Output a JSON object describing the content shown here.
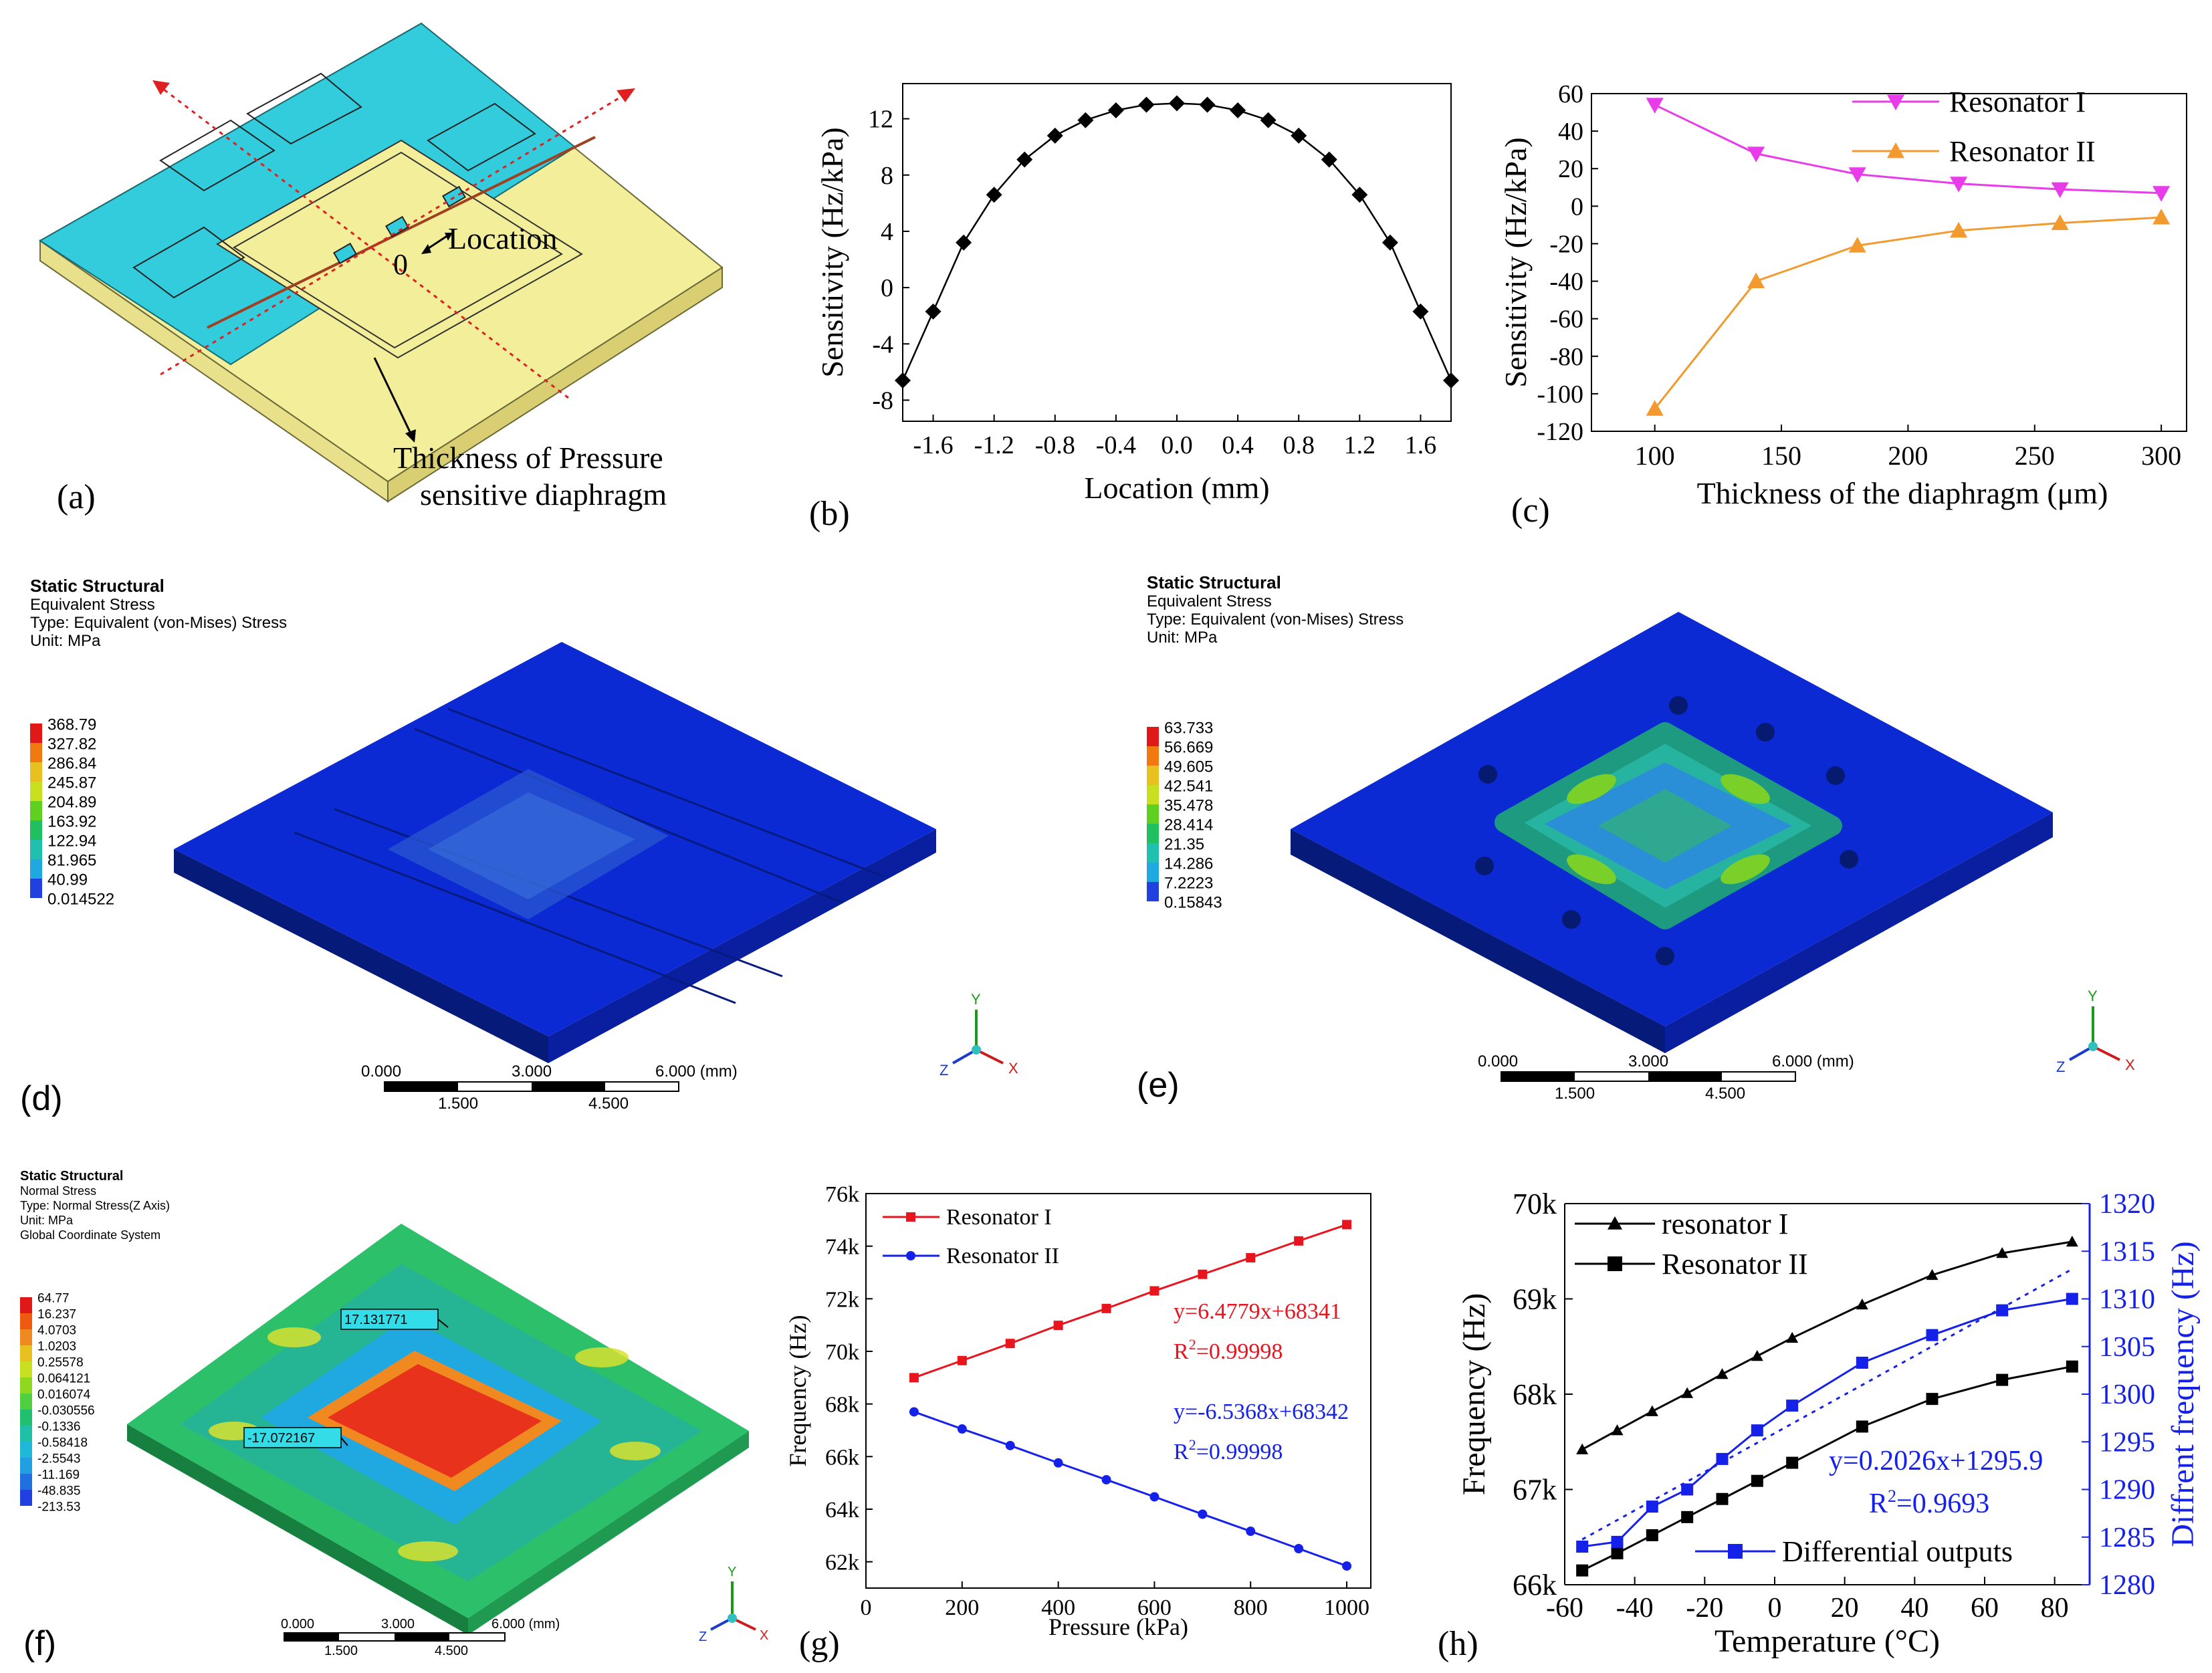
{
  "panels": {
    "a": {
      "label": "(a)",
      "annot_location": "Location",
      "annot_zero": "0",
      "annot_thickness_1": "Thickness of Pressure",
      "annot_thickness_2": "sensitive diaphragm"
    },
    "d": {
      "label": "(d)",
      "header": [
        "Static Structural",
        "Equivalent Stress",
        "Type: Equivalent (von-Mises) Stress",
        "Unit: MPa"
      ],
      "legend": [
        "368.79",
        "327.82",
        "286.84",
        "245.87",
        "204.89",
        "163.92",
        "122.94",
        "81.965",
        "40.99",
        "0.014522"
      ],
      "scale_top": [
        "0.000",
        "3.000",
        "6.000 (mm)"
      ],
      "scale_bottom": [
        "1.500",
        "4.500"
      ],
      "axis": [
        "Y",
        "X",
        "Z"
      ]
    },
    "e": {
      "label": "(e)",
      "header": [
        "Static Structural",
        "Equivalent Stress",
        "Type: Equivalent (von-Mises) Stress",
        "Unit: MPa"
      ],
      "legend": [
        "63.733",
        "56.669",
        "49.605",
        "42.541",
        "35.478",
        "28.414",
        "21.35",
        "14.286",
        "7.2223",
        "0.15843"
      ],
      "scale_top": [
        "0.000",
        "3.000",
        "6.000 (mm)"
      ],
      "scale_bottom": [
        "1.500",
        "4.500"
      ],
      "axis": [
        "Y",
        "X",
        "Z"
      ]
    },
    "f": {
      "label": "(f)",
      "header": [
        "Static Structural",
        "Normal Stress",
        "Type: Normal Stress(Z Axis)",
        "Unit: MPa",
        "Global Coordinate System"
      ],
      "legend": [
        "64.77",
        "16.237",
        "4.0703",
        "1.0203",
        "0.25578",
        "0.064121",
        "0.016074",
        "-0.030556",
        "-0.1336",
        "-0.58418",
        "-2.5543",
        "-11.169",
        "-48.835",
        "-213.53"
      ],
      "probe_max": "17.131771",
      "probe_min": "-17.072167",
      "scale_top": [
        "0.000",
        "3.000",
        "6.000 (mm)"
      ],
      "scale_bottom": [
        "1.500",
        "4.500"
      ],
      "axis": [
        "Y",
        "X",
        "Z"
      ]
    }
  },
  "colors": {
    "teal": "#33ccdd",
    "yellow": "#f3ee9a",
    "ansys_blue": "#0b2ad4",
    "red": "#e8141e",
    "blue": "#1521e8",
    "magenta": "#e83cea",
    "orange": "#f39a2e",
    "black": "#000000"
  },
  "chart_data": [
    {
      "panel": "b",
      "label": "(b)",
      "type": "line",
      "xlabel": "Location (mm)",
      "ylabel": "Sensitivity (Hz/kPa)",
      "xlim": [
        -1.8,
        1.8
      ],
      "ylim": [
        -9.5,
        14.5
      ],
      "xticks": [
        "-1.6",
        "-1.2",
        "-0.8",
        "-0.4",
        "0.0",
        "0.4",
        "0.8",
        "1.2",
        "1.6"
      ],
      "yticks": [
        "-8",
        "-4",
        "0",
        "4",
        "8",
        "12"
      ],
      "series": [
        {
          "x": [
            -1.8,
            -1.6,
            -1.4,
            -1.2,
            -1.0,
            -0.8,
            -0.6,
            -0.4,
            -0.2,
            0.0,
            0.2,
            0.4,
            0.6,
            0.8,
            1.0,
            1.2,
            1.4,
            1.6,
            1.8
          ],
          "y": [
            -6.6,
            -1.7,
            3.2,
            6.6,
            9.1,
            10.8,
            11.9,
            12.6,
            13.0,
            13.1,
            13.0,
            12.6,
            11.9,
            10.8,
            9.1,
            6.6,
            3.2,
            -1.7,
            -6.6
          ]
        }
      ]
    },
    {
      "panel": "c",
      "label": "(c)",
      "type": "line",
      "xlabel": "Thickness of the diaphragm (μm)",
      "ylabel": "Sensitivity (Hz/kPa)",
      "xlim": [
        75,
        310
      ],
      "ylim": [
        -120,
        60
      ],
      "xticks": [
        "100",
        "150",
        "200",
        "250",
        "300"
      ],
      "yticks": [
        "60",
        "40",
        "20",
        "0",
        "-20",
        "-40",
        "-60",
        "-80",
        "-100",
        "-120"
      ],
      "legend_position": "top-right",
      "series": [
        {
          "name": "Resonator I",
          "x": [
            100,
            140,
            180,
            220,
            260,
            300
          ],
          "y": [
            54,
            28,
            17,
            12,
            9,
            7
          ]
        },
        {
          "name": "Resonator II",
          "x": [
            100,
            140,
            180,
            220,
            260,
            300
          ],
          "y": [
            -108,
            -40,
            -21,
            -13,
            -9,
            -6
          ]
        }
      ]
    },
    {
      "panel": "g",
      "label": "(g)",
      "type": "line",
      "xlabel": "Pressure (kPa)",
      "ylabel": "Frequency (Hz)",
      "xlim": [
        0,
        1050
      ],
      "ylim": [
        61000,
        76000
      ],
      "xticks": [
        "0",
        "200",
        "400",
        "600",
        "800",
        "1000"
      ],
      "yticks": [
        "62k",
        "64k",
        "66k",
        "68k",
        "70k",
        "72k",
        "74k",
        "76k"
      ],
      "legend_position": "top-left",
      "annotations": [
        {
          "text": "y=6.4779x+68341",
          "r2": "R",
          "sup": "2",
          "r2val": "=0.99998"
        },
        {
          "text": "y=-6.5368x+68342",
          "r2": "R",
          "sup": "2",
          "r2val": "=0.99998"
        }
      ],
      "series": [
        {
          "name": "Resonator I",
          "x": [
            100,
            200,
            300,
            400,
            500,
            600,
            700,
            800,
            900,
            1000
          ],
          "y": [
            69000,
            69650,
            70300,
            70990,
            71630,
            72300,
            72930,
            73560,
            74200,
            74820
          ]
        },
        {
          "name": "Resonator II",
          "x": [
            100,
            200,
            300,
            400,
            500,
            600,
            700,
            800,
            900,
            1000
          ],
          "y": [
            67700,
            67050,
            66420,
            65760,
            65120,
            64470,
            63810,
            63160,
            62500,
            61840
          ]
        }
      ]
    },
    {
      "panel": "h",
      "label": "(h)",
      "type": "line",
      "xlabel": "Temperature (°C)",
      "ylabel": "Frequency (Hz)",
      "ylabel_right": "Diffrent frequency (Hz)",
      "xlim": [
        -60,
        90
      ],
      "ylim": [
        66000,
        70000
      ],
      "ylim_right": [
        1280,
        1320
      ],
      "xticks": [
        "-60",
        "-40",
        "-20",
        "0",
        "20",
        "40",
        "60",
        "80"
      ],
      "yticks": [
        "66k",
        "67k",
        "68k",
        "69k",
        "70k"
      ],
      "yticks_right": [
        "1280",
        "1285",
        "1290",
        "1295",
        "1300",
        "1305",
        "1310",
        "1315",
        "1320"
      ],
      "legend_position": "top-left",
      "annotation": {
        "text": "y=0.2026x+1295.9",
        "r2": "R",
        "sup": "2",
        "r2val": "=0.9693"
      },
      "series": [
        {
          "name": "resonator I",
          "axis": "left",
          "x": [
            -55,
            -45,
            -35,
            -25,
            -15,
            -5,
            5,
            25,
            45,
            65,
            85
          ],
          "y": [
            67420,
            67620,
            67820,
            68010,
            68210,
            68400,
            68590,
            68940,
            69250,
            69480,
            69600
          ]
        },
        {
          "name": "Resonator II",
          "axis": "left",
          "x": [
            -55,
            -45,
            -35,
            -25,
            -15,
            -5,
            5,
            25,
            45,
            65,
            85
          ],
          "y": [
            66150,
            66330,
            66520,
            66710,
            66900,
            67090,
            67280,
            67660,
            67950,
            68150,
            68290
          ]
        },
        {
          "name": "Differential outputs",
          "axis": "right",
          "x": [
            -55,
            -45,
            -35,
            -25,
            -15,
            -5,
            5,
            25,
            45,
            65,
            85
          ],
          "y": [
            1284,
            1284.5,
            1288.2,
            1290,
            1293.2,
            1296.2,
            1298.8,
            1303.3,
            1306.2,
            1308.8,
            1310
          ]
        }
      ]
    }
  ]
}
